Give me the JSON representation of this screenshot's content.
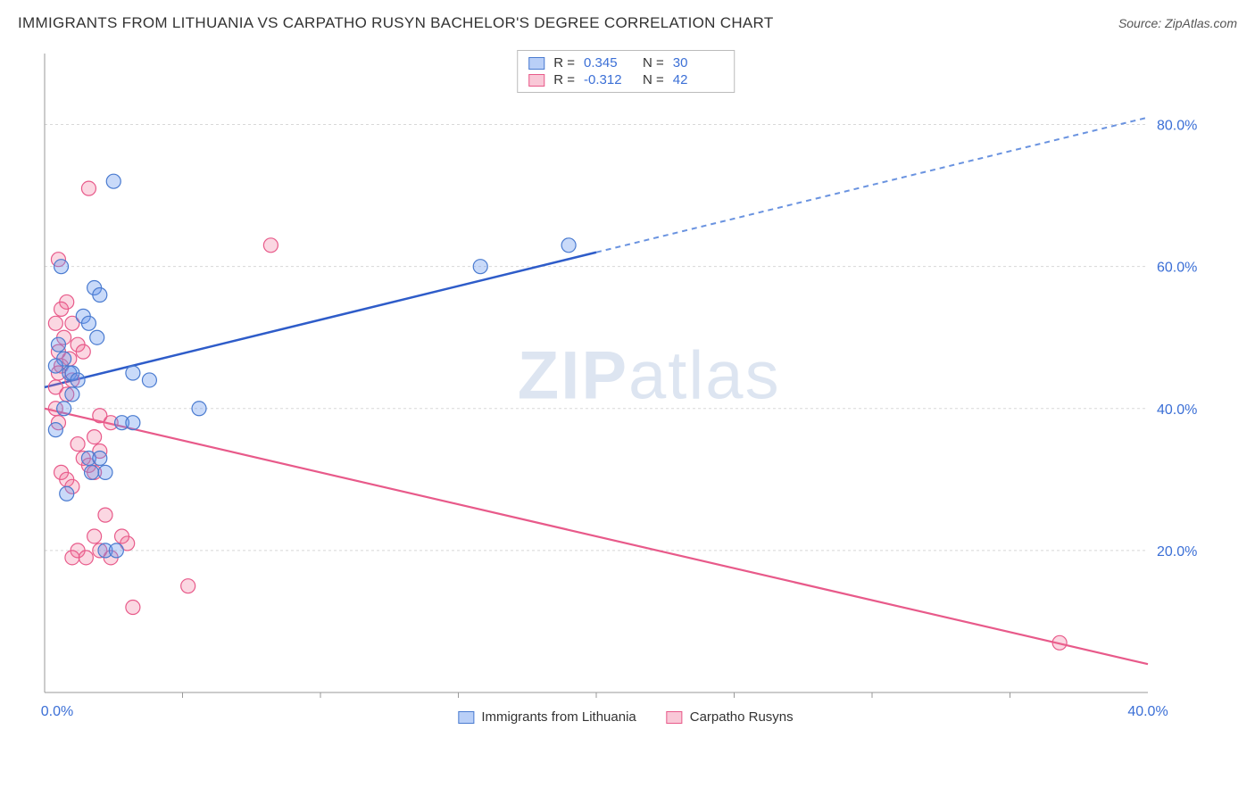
{
  "header": {
    "title": "IMMIGRANTS FROM LITHUANIA VS CARPATHO RUSYN BACHELOR'S DEGREE CORRELATION CHART",
    "source": "Source: ZipAtlas.com"
  },
  "watermark": {
    "zip": "ZIP",
    "rest": "atlas"
  },
  "chart": {
    "type": "scatter",
    "background_color": "#ffffff",
    "grid_color": "#d8d8d8",
    "axis_color": "#999999",
    "tick_label_color": "#3b6fd6",
    "ylabel": "Bachelor's Degree",
    "ylabel_fontsize": 14,
    "tick_fontsize": 16,
    "xlim": [
      0,
      40
    ],
    "ylim": [
      0,
      90
    ],
    "yticks": [
      20,
      40,
      60,
      80
    ],
    "ytick_labels": [
      "20.0%",
      "40.0%",
      "60.0%",
      "80.0%"
    ],
    "xticks": [
      0,
      40
    ],
    "xtick_labels": [
      "0.0%",
      "40.0%"
    ],
    "x_inner_ticks": [
      5,
      10,
      15,
      20,
      25,
      30,
      35
    ],
    "marker_radius": 8,
    "series": [
      {
        "name": "Immigrants from Lithuania",
        "color_fill": "rgba(100,149,237,0.35)",
        "color_stroke": "#4a7bd0",
        "R": "0.345",
        "N": "30",
        "points": [
          [
            2.5,
            72
          ],
          [
            0.6,
            60
          ],
          [
            1.8,
            57
          ],
          [
            2.0,
            56
          ],
          [
            1.4,
            53
          ],
          [
            1.6,
            52
          ],
          [
            1.9,
            50
          ],
          [
            0.5,
            49
          ],
          [
            15.8,
            60
          ],
          [
            19.0,
            63
          ],
          [
            0.7,
            47
          ],
          [
            0.4,
            46
          ],
          [
            0.9,
            45
          ],
          [
            1.0,
            45
          ],
          [
            1.2,
            44
          ],
          [
            3.2,
            45
          ],
          [
            3.8,
            44
          ],
          [
            1.0,
            42
          ],
          [
            0.7,
            40
          ],
          [
            5.6,
            40
          ],
          [
            2.8,
            38
          ],
          [
            3.2,
            38
          ],
          [
            1.6,
            33
          ],
          [
            2.0,
            33
          ],
          [
            1.7,
            31
          ],
          [
            2.2,
            31
          ],
          [
            0.8,
            28
          ],
          [
            2.2,
            20
          ],
          [
            2.6,
            20
          ],
          [
            0.4,
            37
          ]
        ],
        "trend": {
          "x1": 0,
          "y1": 43,
          "x2": 20,
          "y2": 62,
          "x3": 40,
          "y3": 81,
          "color": "#2e5cc9",
          "width": 2.5
        }
      },
      {
        "name": "Carpatho Rusyns",
        "color_fill": "rgba(240,110,150,0.28)",
        "color_stroke": "#e85a8a",
        "R": "-0.312",
        "N": "42",
        "points": [
          [
            1.6,
            71
          ],
          [
            8.2,
            63
          ],
          [
            0.5,
            61
          ],
          [
            0.8,
            55
          ],
          [
            0.6,
            54
          ],
          [
            1.0,
            52
          ],
          [
            0.4,
            52
          ],
          [
            0.7,
            50
          ],
          [
            1.2,
            49
          ],
          [
            1.4,
            48
          ],
          [
            0.6,
            46
          ],
          [
            0.5,
            45
          ],
          [
            1.0,
            44
          ],
          [
            0.4,
            43
          ],
          [
            0.8,
            42
          ],
          [
            2.0,
            39
          ],
          [
            2.4,
            38
          ],
          [
            0.5,
            38
          ],
          [
            1.8,
            36
          ],
          [
            1.2,
            35
          ],
          [
            2.0,
            34
          ],
          [
            1.4,
            33
          ],
          [
            1.6,
            32
          ],
          [
            1.8,
            31
          ],
          [
            0.6,
            31
          ],
          [
            0.8,
            30
          ],
          [
            1.0,
            29
          ],
          [
            2.2,
            25
          ],
          [
            1.8,
            22
          ],
          [
            1.2,
            20
          ],
          [
            2.0,
            20
          ],
          [
            3.0,
            21
          ],
          [
            2.8,
            22
          ],
          [
            1.5,
            19
          ],
          [
            1.0,
            19
          ],
          [
            2.4,
            19
          ],
          [
            5.2,
            15
          ],
          [
            3.2,
            12
          ],
          [
            36.8,
            7
          ],
          [
            0.5,
            48
          ],
          [
            0.9,
            47
          ],
          [
            0.4,
            40
          ]
        ],
        "trend": {
          "x1": 0,
          "y1": 40,
          "x2": 40,
          "y2": 4,
          "color": "#e85a8a",
          "width": 2.2
        }
      }
    ],
    "legend_top": {
      "r_label": "R =",
      "n_label": "N ="
    },
    "legend_bottom": {
      "items": [
        "Immigrants from Lithuania",
        "Carpatho Rusyns"
      ]
    }
  }
}
